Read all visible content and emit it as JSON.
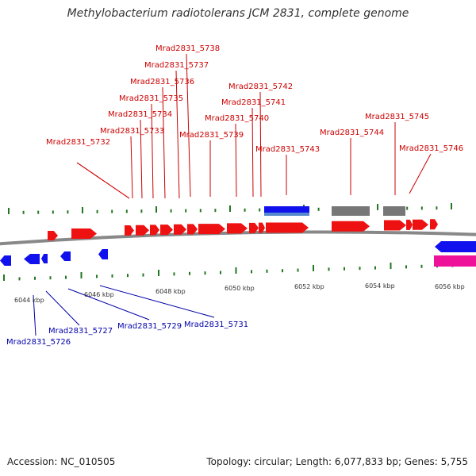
{
  "title": "Methylobacterium radiotolerans JCM 2831, complete genome",
  "footer": {
    "accession": "Accession: NC_010505",
    "summary": "Topology: circular; Length: 6,077,833 bp; Genes: 5,755"
  },
  "colors": {
    "forward_gene": "#ee1111",
    "reverse_gene": "#1111ee",
    "forward_label": "#cc0000",
    "reverse_label": "#0000aa",
    "other_feature": "#777777",
    "rna_feature": "#ee1199",
    "tick": "#227722",
    "backbone": "#888888"
  },
  "kbp_labels": [
    "6044 kbp",
    "6046 kbp",
    "6048 kbp",
    "6050 kbp",
    "6052 kbp",
    "6054 kbp",
    "6056 kbp"
  ],
  "forward_labels": [
    "Mrad2831_5732",
    "Mrad2831_5733",
    "Mrad2831_5734",
    "Mrad2831_5735",
    "Mrad2831_5736",
    "Mrad2831_5737",
    "Mrad2831_5738",
    "Mrad2831_5739",
    "Mrad2831_5740",
    "Mrad2831_5741",
    "Mrad2831_5742",
    "Mrad2831_5743",
    "Mrad2831_5744",
    "Mrad2831_5745",
    "Mrad2831_5746"
  ],
  "reverse_labels": [
    "Mrad2831_5726",
    "Mrad2831_5727",
    "Mrad2831_5729",
    "Mrad2831_5731"
  ]
}
